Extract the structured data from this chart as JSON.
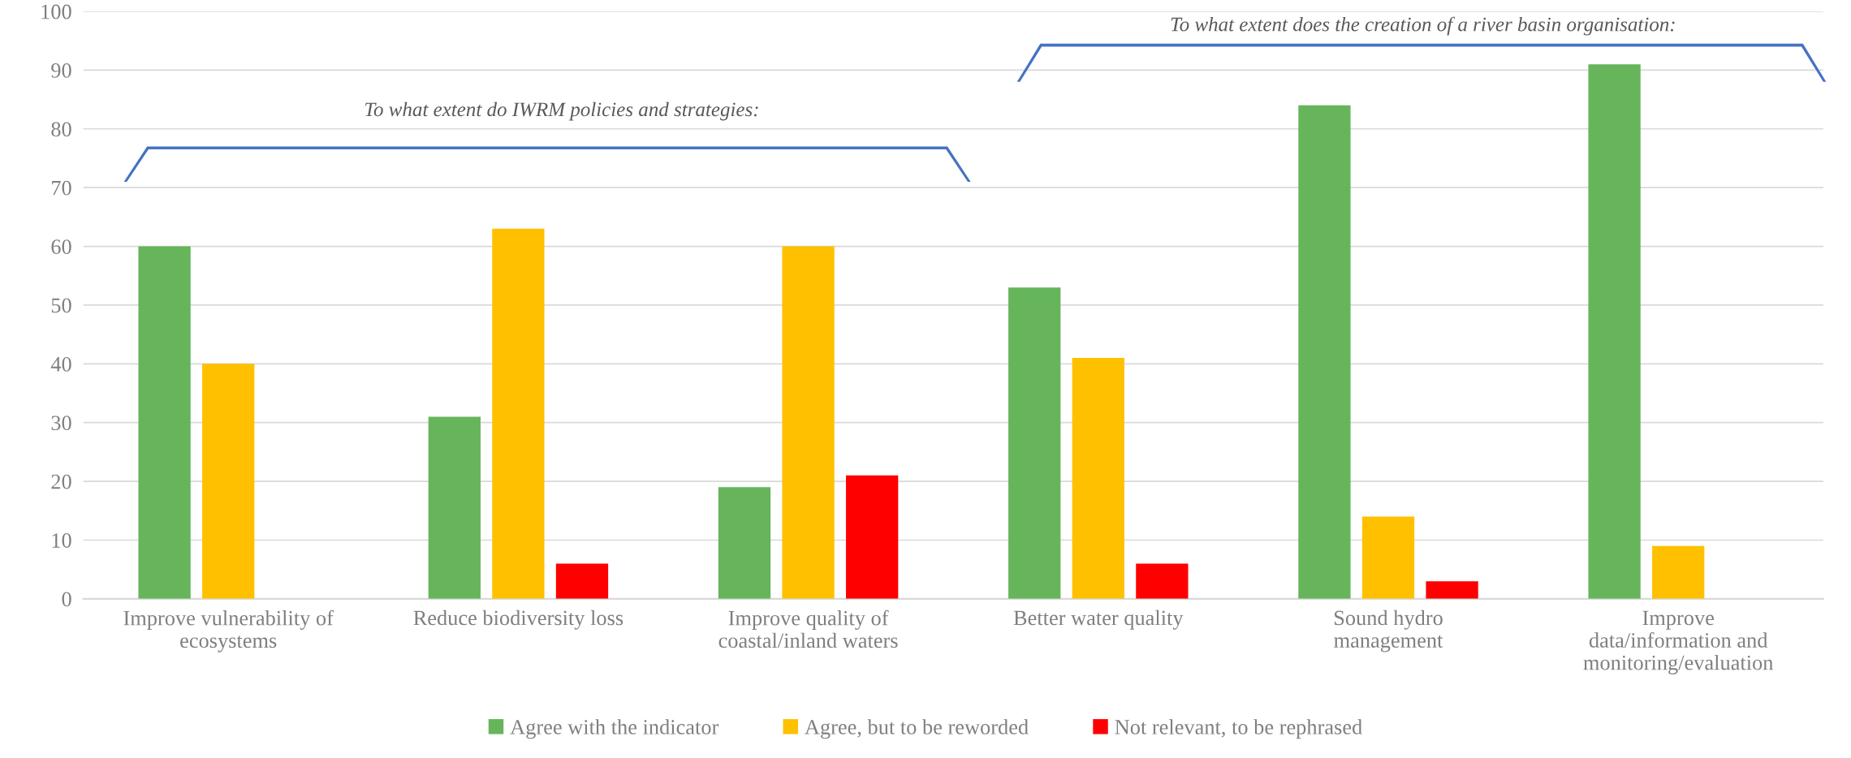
{
  "chart_data": {
    "type": "bar",
    "categories": [
      "Improve vulnerability of\necosystems",
      "Reduce biodiversity loss",
      "Improve quality of\ncoastal/inland waters",
      "Better water quality",
      "Sound hydro\nmanagement",
      "Improve\ndata/information and\nmonitoring/evaluation"
    ],
    "series": [
      {
        "name": "Agree with the indicator",
        "color": "#66b55b",
        "values": [
          60,
          31,
          19,
          53,
          84,
          91
        ]
      },
      {
        "name": "Agree, but to be reworded",
        "color": "#ffc000",
        "values": [
          40,
          63,
          60,
          41,
          14,
          9
        ]
      },
      {
        "name": "Not relevant, to be rephrased",
        "color": "#ff0000",
        "values": [
          null,
          6,
          21,
          6,
          3,
          null
        ]
      }
    ],
    "annotations": [
      "To what extent do IWRM policies and strategies:",
      "To what extent does the creation of a river basin organisation:"
    ],
    "ylim": [
      0,
      100
    ],
    "yticks": [
      0,
      10,
      20,
      30,
      40,
      50,
      60,
      70,
      80,
      90,
      100
    ],
    "grid": "y",
    "legend": "bottom"
  }
}
